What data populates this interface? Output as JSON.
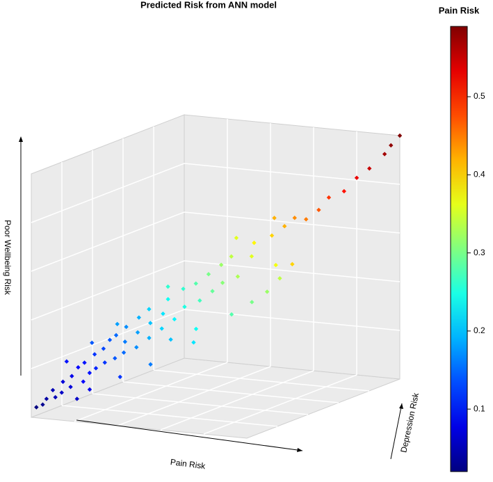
{
  "chart_data": {
    "type": "scatter3d",
    "title": "Predicted Risk from ANN model",
    "xlabel": "Pain Risk",
    "ylabel": "Depression Risk",
    "zlabel": "Poor Wellbeing Risk",
    "xlim": [
      0.02,
      0.59
    ],
    "ylim": [
      0,
      0.6
    ],
    "zlim": [
      0,
      0.6
    ],
    "colormap": "jet",
    "colorbar": {
      "title": "Pain Risk",
      "lim": [
        0.02,
        0.59
      ],
      "ticks": [
        0.1,
        0.2,
        0.3,
        0.4,
        0.5
      ]
    },
    "x": [
      0.02,
      0.03,
      0.04,
      0.05,
      0.05,
      0.06,
      0.07,
      0.07,
      0.08,
      0.09,
      0.09,
      0.1,
      0.1,
      0.11,
      0.12,
      0.12,
      0.13,
      0.14,
      0.14,
      0.15,
      0.15,
      0.16,
      0.17,
      0.17,
      0.18,
      0.19,
      0.19,
      0.2,
      0.21,
      0.21,
      0.22,
      0.23,
      0.24,
      0.25,
      0.26,
      0.27,
      0.28,
      0.29,
      0.3,
      0.31,
      0.32,
      0.33,
      0.34,
      0.36,
      0.38,
      0.4,
      0.42,
      0.42,
      0.44,
      0.45,
      0.47,
      0.49,
      0.51,
      0.53,
      0.55,
      0.57,
      0.58,
      0.59,
      0.08,
      0.12,
      0.06,
      0.16,
      0.1,
      0.22,
      0.28,
      0.3,
      0.32,
      0.34,
      0.37,
      0.26,
      0.18,
      0.14,
      0.24,
      0.2,
      0.36,
      0.4
    ],
    "y": [
      0.02,
      0.03,
      0.03,
      0.05,
      0.04,
      0.06,
      0.05,
      0.08,
      0.07,
      0.1,
      0.08,
      0.11,
      0.09,
      0.12,
      0.1,
      0.14,
      0.12,
      0.15,
      0.13,
      0.17,
      0.14,
      0.16,
      0.19,
      0.15,
      0.18,
      0.21,
      0.17,
      0.2,
      0.23,
      0.18,
      0.22,
      0.25,
      0.21,
      0.26,
      0.24,
      0.29,
      0.26,
      0.31,
      0.28,
      0.32,
      0.3,
      0.35,
      0.31,
      0.36,
      0.34,
      0.38,
      0.4,
      0.36,
      0.41,
      0.44,
      0.46,
      0.47,
      0.5,
      0.52,
      0.54,
      0.57,
      0.58,
      0.6,
      0.14,
      0.2,
      0.12,
      0.26,
      0.02,
      0.34,
      0.4,
      0.45,
      0.48,
      0.5,
      0.44,
      0.18,
      0.1,
      0.06,
      0.32,
      0.28,
      0.3,
      0.46
    ],
    "z": [
      0.02,
      0.025,
      0.04,
      0.04,
      0.06,
      0.05,
      0.08,
      0.06,
      0.09,
      0.07,
      0.11,
      0.09,
      0.12,
      0.1,
      0.14,
      0.11,
      0.15,
      0.12,
      0.17,
      0.13,
      0.18,
      0.16,
      0.14,
      0.2,
      0.18,
      0.16,
      0.22,
      0.2,
      0.18,
      0.24,
      0.22,
      0.2,
      0.26,
      0.23,
      0.28,
      0.24,
      0.29,
      0.26,
      0.31,
      0.28,
      0.33,
      0.29,
      0.35,
      0.34,
      0.38,
      0.39,
      0.41,
      0.44,
      0.43,
      0.42,
      0.44,
      0.47,
      0.48,
      0.51,
      0.53,
      0.56,
      0.58,
      0.6,
      0.04,
      0.06,
      0.02,
      0.08,
      0.14,
      0.12,
      0.18,
      0.2,
      0.22,
      0.25,
      0.3,
      0.3,
      0.22,
      0.18,
      0.16,
      0.14,
      0.4,
      0.3
    ]
  }
}
